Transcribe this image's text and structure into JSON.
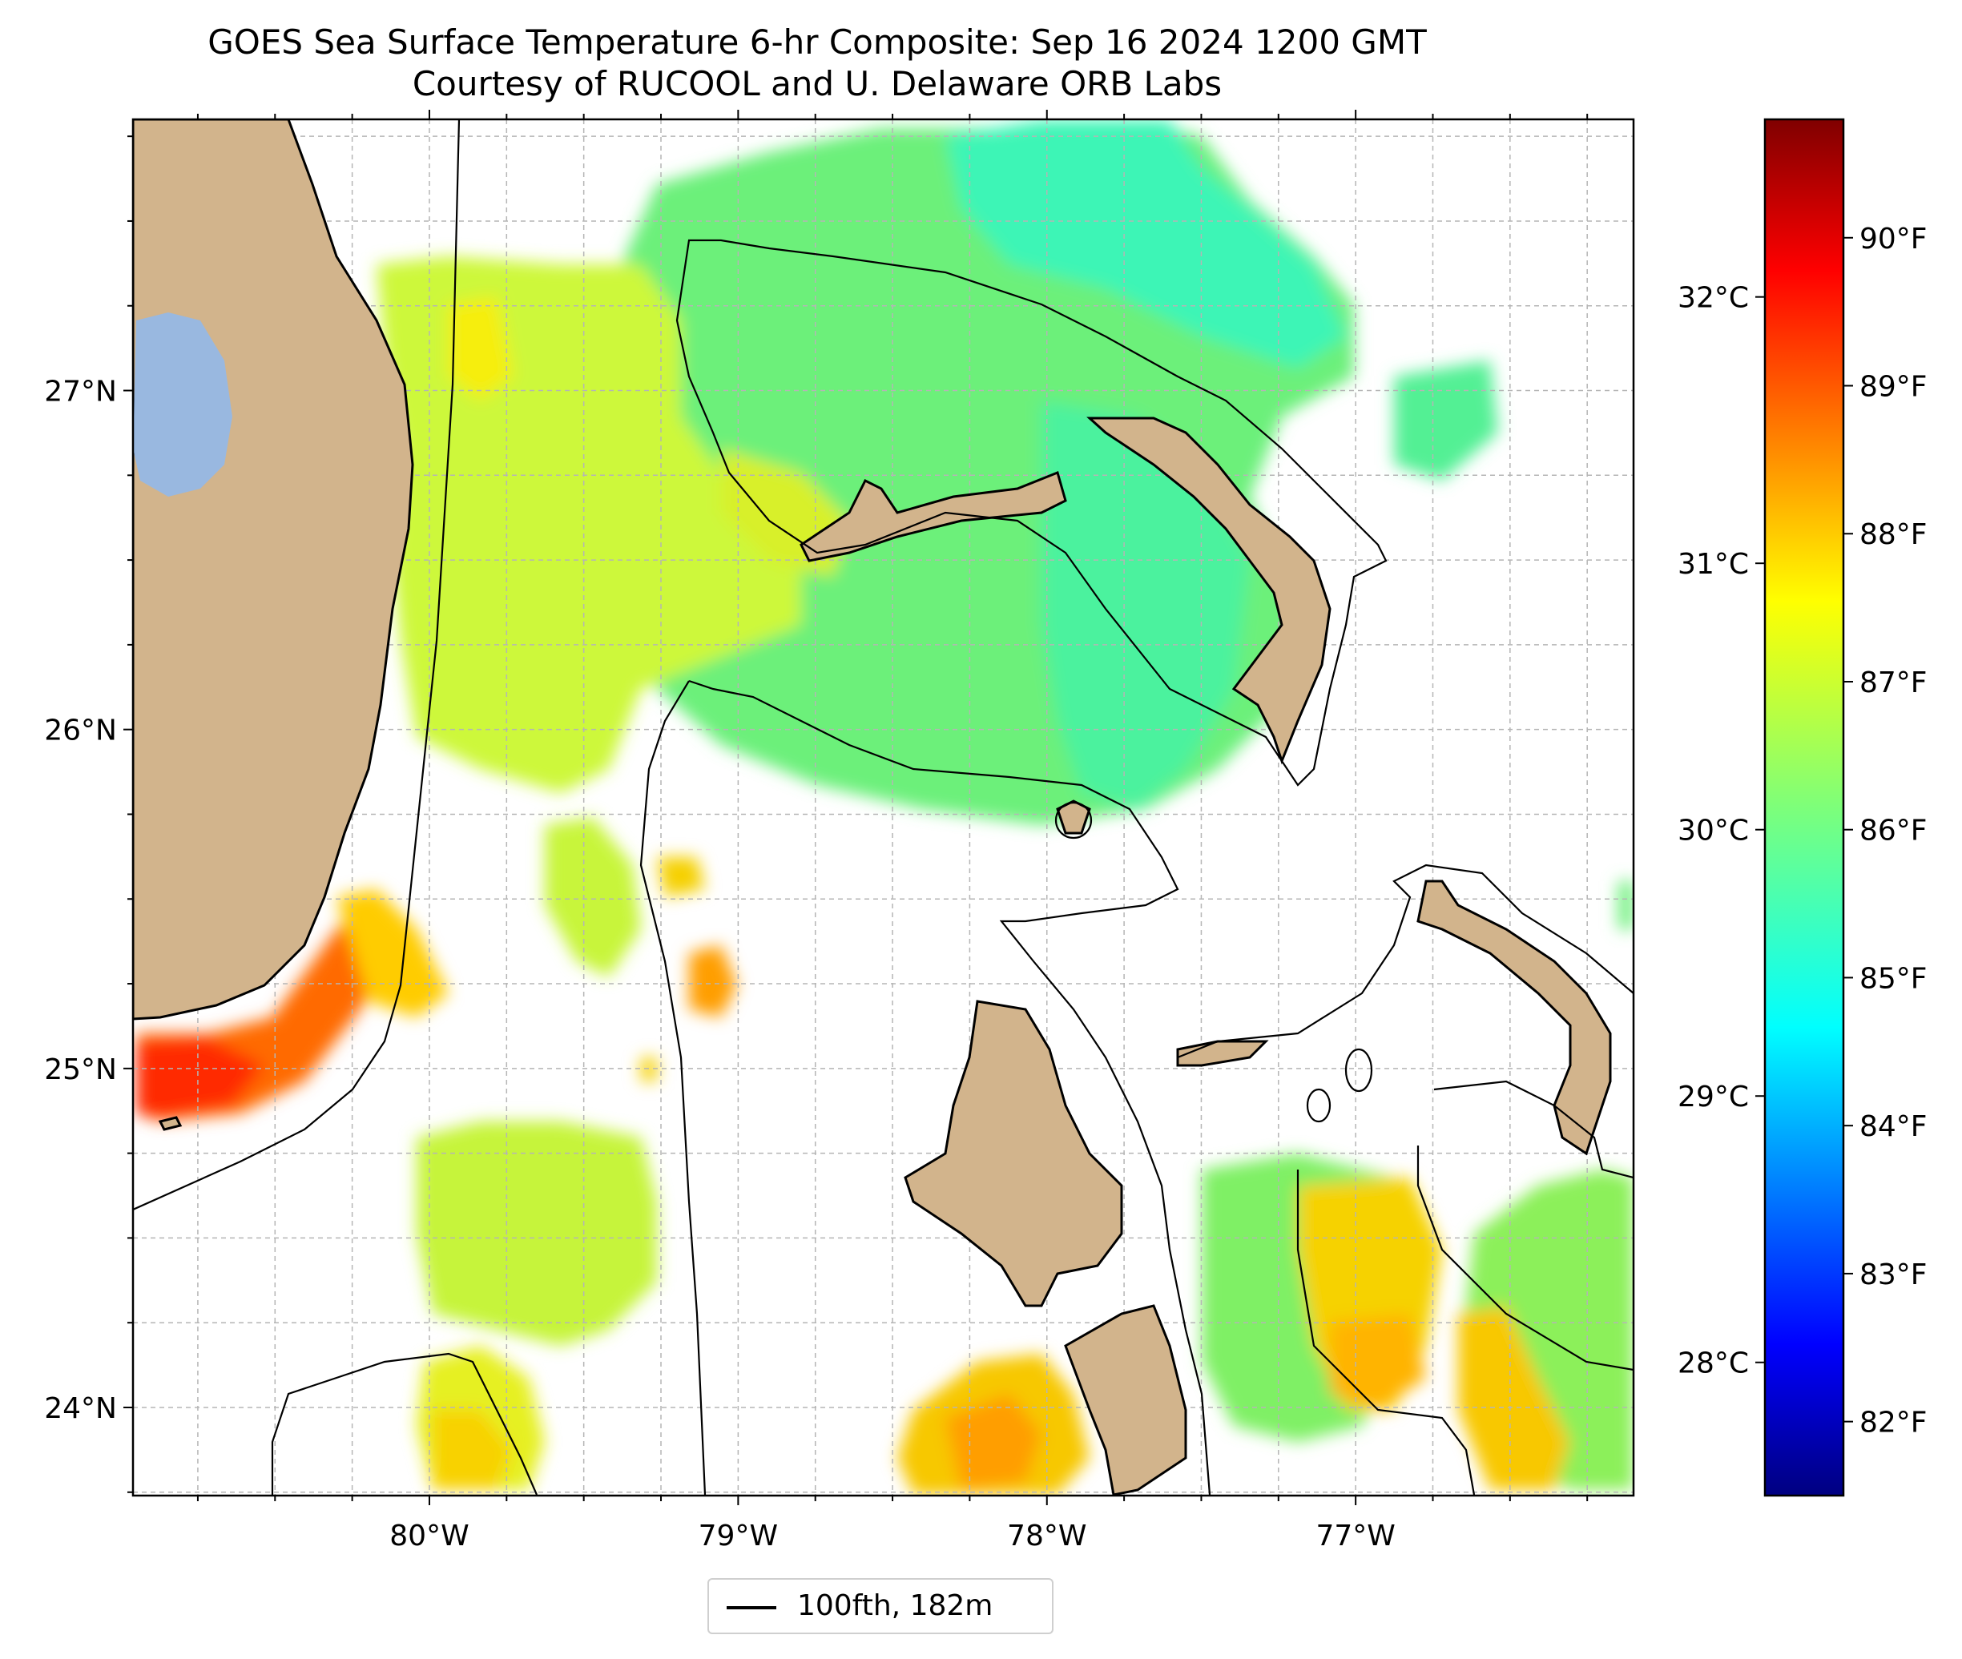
{
  "title": {
    "line1": "GOES Sea Surface Temperature 6-hr Composite: Sep 16 2024 1200 GMT",
    "line2": "Courtesy of RUCOOL and U. Delaware ORB Labs"
  },
  "map": {
    "lon_range": [
      -80.96,
      -76.1
    ],
    "lat_range": [
      23.74,
      27.8
    ],
    "lon_ticks": [
      {
        "value": -80,
        "label": "80°W"
      },
      {
        "value": -79,
        "label": "79°W"
      },
      {
        "value": -78,
        "label": "78°W"
      },
      {
        "value": -77,
        "label": "77°W"
      }
    ],
    "lat_ticks": [
      {
        "value": 24,
        "label": "24°N"
      },
      {
        "value": 25,
        "label": "25°N"
      },
      {
        "value": 26,
        "label": "26°N"
      },
      {
        "value": 27,
        "label": "27°N"
      }
    ],
    "gridlines": "dashed gray",
    "colors": {
      "land": "#d2b48c",
      "lake": "#99b8e0",
      "coastline": "#000000",
      "isobath": "#000000"
    }
  },
  "colorbar": {
    "colormap": "jet",
    "fahrenheit_ticks": [
      {
        "value": 82,
        "label": "82°F"
      },
      {
        "value": 83,
        "label": "83°F"
      },
      {
        "value": 84,
        "label": "84°F"
      },
      {
        "value": 85,
        "label": "85°F"
      },
      {
        "value": 86,
        "label": "86°F"
      },
      {
        "value": 87,
        "label": "87°F"
      },
      {
        "value": 88,
        "label": "88°F"
      },
      {
        "value": 89,
        "label": "89°F"
      },
      {
        "value": 90,
        "label": "90°F"
      }
    ],
    "celsius_ticks": [
      {
        "value": 28,
        "label": "28°C"
      },
      {
        "value": 29,
        "label": "29°C"
      },
      {
        "value": 30,
        "label": "30°C"
      },
      {
        "value": 31,
        "label": "31°C"
      },
      {
        "value": 32,
        "label": "32°C"
      }
    ],
    "range_f": [
      81.5,
      90.8
    ]
  },
  "legend": {
    "entry": "100fth, 182m"
  }
}
